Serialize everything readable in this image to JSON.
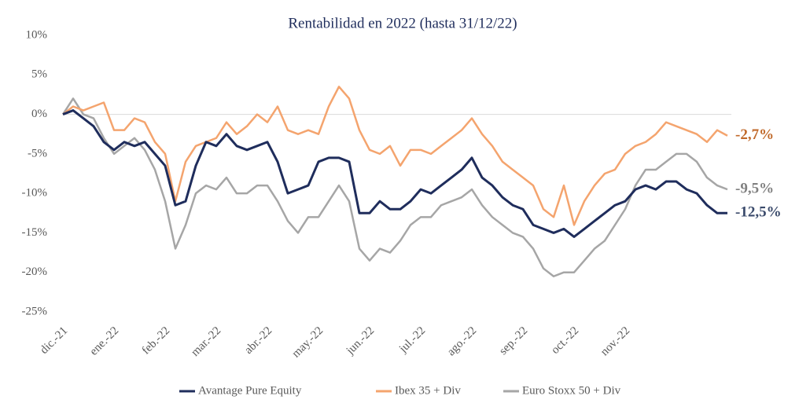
{
  "chart_data": {
    "type": "line",
    "title": "Rentabilidad en 2022 (hasta 31/12/22)",
    "categories": [
      "dic.-21",
      null,
      null,
      null,
      null,
      "ene.-22",
      null,
      null,
      null,
      null,
      "feb.-22",
      null,
      null,
      null,
      null,
      "mar.-22",
      null,
      null,
      null,
      null,
      "abr.-22",
      null,
      null,
      null,
      null,
      "may.-22",
      null,
      null,
      null,
      null,
      "jun.-22",
      null,
      null,
      null,
      null,
      "jul.-22",
      null,
      null,
      null,
      null,
      "ago.-22",
      null,
      null,
      null,
      null,
      "sep.-22",
      null,
      null,
      null,
      null,
      "oct.-22",
      null,
      null,
      null,
      null,
      "nov.-22",
      null,
      null,
      null,
      null,
      null,
      null,
      null,
      null,
      null,
      null
    ],
    "ylim": [
      -25,
      10
    ],
    "yticks": [
      {
        "value": 10,
        "label": "10%"
      },
      {
        "value": 5,
        "label": "5%"
      },
      {
        "value": 0,
        "label": "0%"
      },
      {
        "value": -5,
        "label": "-5%"
      },
      {
        "value": -10,
        "label": "-10%"
      },
      {
        "value": -15,
        "label": "-15%"
      },
      {
        "value": -20,
        "label": "-20%"
      },
      {
        "value": -25,
        "label": "-25%"
      }
    ],
    "grid": false,
    "legend": "bottom",
    "series": [
      {
        "name": "Avantage Pure Equity",
        "color": "#1f2d5c",
        "end_label": "-12,5%",
        "end_label_color": "#3a4a6b",
        "values": [
          0,
          0.5,
          -0.5,
          -1.5,
          -3.5,
          -4.5,
          -3.5,
          -4,
          -3.5,
          -5,
          -6.5,
          -11.5,
          -11,
          -6.5,
          -3.5,
          -4,
          -2.5,
          -4,
          -4.5,
          -4,
          -3.5,
          -6,
          -10,
          -9.5,
          -9,
          -6,
          -5.5,
          -5.5,
          -6,
          -12.5,
          -12.5,
          -11,
          -12,
          -12,
          -11,
          -9.5,
          -10,
          -9,
          -8,
          -7,
          -5.5,
          -8,
          -9,
          -10.5,
          -11.5,
          -12,
          -14,
          -14.5,
          -15,
          -14.5,
          -15.5,
          -14.5,
          -13.5,
          -12.5,
          -11.5,
          -11,
          -9.5,
          -9,
          -9.5,
          -8.5,
          -8.5,
          -9.5,
          -10,
          -11.5,
          -12.5,
          -12.5
        ]
      },
      {
        "name": "Ibex 35 + Div",
        "color": "#f4a46e",
        "end_label": "-2,7%",
        "end_label_color": "#c0692a",
        "values": [
          0,
          1,
          0.5,
          1,
          1.5,
          -2,
          -2,
          -0.5,
          -1,
          -3.5,
          -5,
          -11,
          -6,
          -4,
          -3.5,
          -3,
          -1,
          -2.5,
          -1.5,
          0,
          -1,
          1,
          -2,
          -2.5,
          -2,
          -2.5,
          1,
          3.5,
          2,
          -2,
          -4.5,
          -5,
          -4,
          -6.5,
          -4.5,
          -4.5,
          -5,
          -4,
          -3,
          -2,
          -0.5,
          -2.5,
          -4,
          -6,
          -7,
          -8,
          -9,
          -12,
          -13,
          -9,
          -14,
          -11,
          -9,
          -7.5,
          -7,
          -5,
          -4,
          -3.5,
          -2.5,
          -1,
          -1.5,
          -2,
          -2.5,
          -3.5,
          -2,
          -2.7
        ]
      },
      {
        "name": "Euro Stoxx 50 + Div",
        "color": "#a6a6a6",
        "end_label": "-9,5%",
        "end_label_color": "#808080",
        "values": [
          0,
          2,
          0,
          -0.5,
          -3,
          -5,
          -4,
          -3,
          -4.5,
          -7,
          -11,
          -17,
          -14,
          -10,
          -9,
          -9.5,
          -8,
          -10,
          -10,
          -9,
          -9,
          -11,
          -13.5,
          -15,
          -13,
          -13,
          -11,
          -9,
          -11,
          -17,
          -18.5,
          -17,
          -17.5,
          -16,
          -14,
          -13,
          -13,
          -11.5,
          -11,
          -10.5,
          -9.5,
          -11.5,
          -13,
          -14,
          -15,
          -15.5,
          -17,
          -19.5,
          -20.5,
          -20,
          -20,
          -18.5,
          -17,
          -16,
          -14,
          -12,
          -9,
          -7,
          -7,
          -6,
          -5,
          -5,
          -6,
          -8,
          -9,
          -9.5
        ]
      }
    ]
  }
}
